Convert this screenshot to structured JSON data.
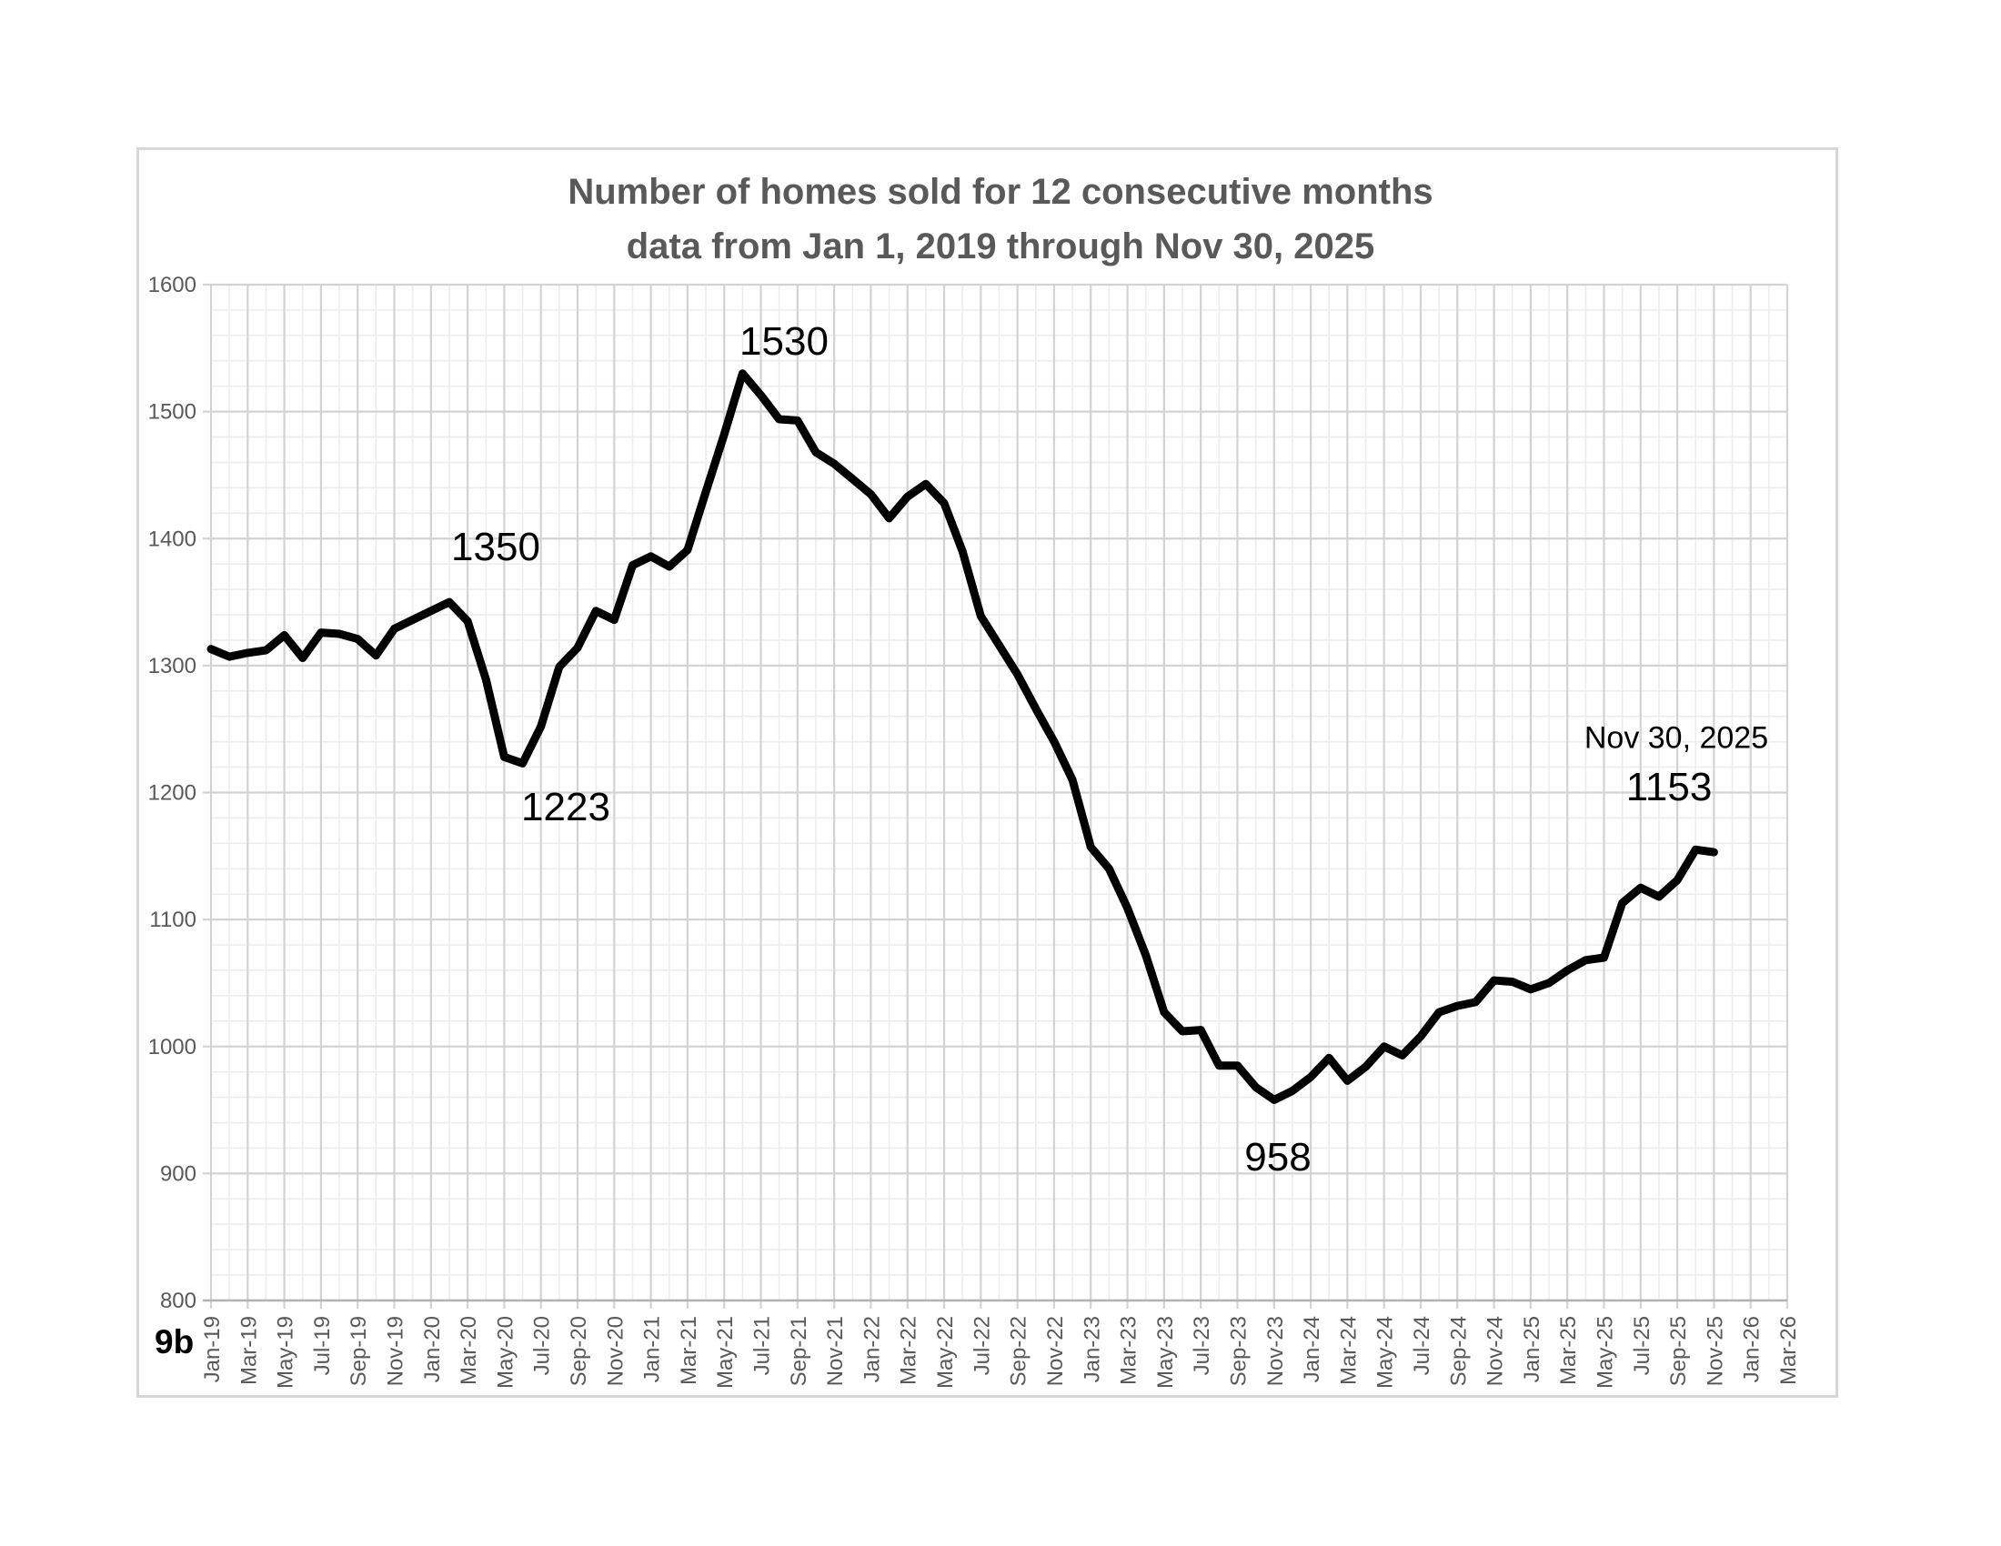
{
  "page": {
    "label_9b": "9b"
  },
  "title": {
    "line1": "Number of homes sold for 12 consecutive months",
    "line2": "data from Jan 1, 2019 through Nov 30, 2025"
  },
  "chart_data": {
    "type": "line",
    "title": "Number of homes sold for 12 consecutive months",
    "subtitle": "data from Jan 1, 2019 through Nov 30, 2025",
    "x_monthly_start": "Jan-19",
    "x_monthly_end": "Nov-25",
    "months": [
      "Jan-19",
      "Feb-19",
      "Mar-19",
      "Apr-19",
      "May-19",
      "Jun-19",
      "Jul-19",
      "Aug-19",
      "Sep-19",
      "Oct-19",
      "Nov-19",
      "Dec-19",
      "Jan-20",
      "Feb-20",
      "Mar-20",
      "Apr-20",
      "May-20",
      "Jun-20",
      "Jul-20",
      "Aug-20",
      "Sep-20",
      "Oct-20",
      "Nov-20",
      "Dec-20",
      "Jan-21",
      "Feb-21",
      "Mar-21",
      "Apr-21",
      "May-21",
      "Jun-21",
      "Jul-21",
      "Aug-21",
      "Sep-21",
      "Oct-21",
      "Nov-21",
      "Dec-21",
      "Jan-22",
      "Feb-22",
      "Mar-22",
      "Apr-22",
      "May-22",
      "Jun-22",
      "Jul-22",
      "Aug-22",
      "Sep-22",
      "Oct-22",
      "Nov-22",
      "Dec-22",
      "Jan-23",
      "Feb-23",
      "Mar-23",
      "Apr-23",
      "May-23",
      "Jun-23",
      "Jul-23",
      "Aug-23",
      "Sep-23",
      "Oct-23",
      "Nov-23",
      "Dec-23",
      "Jan-24",
      "Feb-24",
      "Mar-24",
      "Apr-24",
      "May-24",
      "Jun-24",
      "Jul-24",
      "Aug-24",
      "Sep-24",
      "Oct-24",
      "Nov-24",
      "Dec-24",
      "Jan-25",
      "Feb-25",
      "Mar-25",
      "Apr-25",
      "May-25",
      "Jun-25",
      "Jul-25",
      "Aug-25",
      "Sep-25",
      "Oct-25",
      "Nov-25"
    ],
    "series": [
      {
        "name": "Homes sold (trailing 12 months)",
        "values": [
          1313,
          1307,
          1310,
          1312,
          1324,
          1306,
          1326,
          1325,
          1321,
          1308,
          1329,
          1336,
          1343,
          1350,
          1335,
          1289,
          1228,
          1223,
          1252,
          1299,
          1314,
          1343,
          1336,
          1379,
          1386,
          1378,
          1391,
          1437,
          1482,
          1530,
          1513,
          1494,
          1493,
          1468,
          1459,
          1447,
          1435,
          1416,
          1433,
          1443,
          1428,
          1390,
          1339,
          1316,
          1293,
          1266,
          1240,
          1210,
          1157,
          1140,
          1109,
          1072,
          1027,
          1012,
          1013,
          985,
          985,
          968,
          958,
          965,
          976,
          991,
          973,
          984,
          1000,
          993,
          1008,
          1027,
          1032,
          1035,
          1052,
          1051,
          1045,
          1050,
          1060,
          1068,
          1070,
          1113,
          1125,
          1118,
          1131,
          1155,
          1153
        ]
      }
    ],
    "x_tick_labels": [
      "Jan-19",
      "Mar-19",
      "May-19",
      "Jul-19",
      "Sep-19",
      "Nov-19",
      "Jan-20",
      "Mar-20",
      "May-20",
      "Jul-20",
      "Sep-20",
      "Nov-20",
      "Jan-21",
      "Mar-21",
      "May-21",
      "Jul-21",
      "Sep-21",
      "Nov-21",
      "Jan-22",
      "Mar-22",
      "May-22",
      "Jul-22",
      "Sep-22",
      "Nov-22",
      "Jan-23",
      "Mar-23",
      "May-23",
      "Jul-23",
      "Sep-23",
      "Nov-23",
      "Jan-24",
      "Mar-24",
      "May-24",
      "Jul-24",
      "Sep-24",
      "Nov-24",
      "Jan-25",
      "Mar-25",
      "May-25",
      "Jul-25",
      "Sep-25",
      "Nov-25",
      "Jan-26",
      "Mar-26"
    ],
    "y_ticks": [
      800,
      900,
      1000,
      1100,
      1200,
      1300,
      1400,
      1500,
      1600
    ],
    "ylim": [
      800,
      1600
    ],
    "y_minor_step": 20,
    "x_minor_step_months": 1,
    "grid": true,
    "legend": "none",
    "line_color": "#000000",
    "annotations": [
      {
        "text": "1350",
        "month": "Feb-20",
        "value": 1350
      },
      {
        "text": "1223",
        "month": "Jun-20",
        "value": 1223
      },
      {
        "text": "1530",
        "month": "Jun-21",
        "value": 1530
      },
      {
        "text": "958",
        "month": "Nov-23",
        "value": 958
      },
      {
        "text": "Nov 30, 2025",
        "month": "Nov-25"
      },
      {
        "text": "1153",
        "month": "Nov-25",
        "value": 1153
      }
    ],
    "colors": {
      "line": "#000000",
      "major_grid": "#d3d3d3",
      "minor_grid": "#ededed",
      "axis": "#b3b3b3",
      "axis_text": "#595959",
      "title_text": "#595959",
      "annotation_text": "#000000",
      "frame_border": "#d7d7d7"
    }
  }
}
